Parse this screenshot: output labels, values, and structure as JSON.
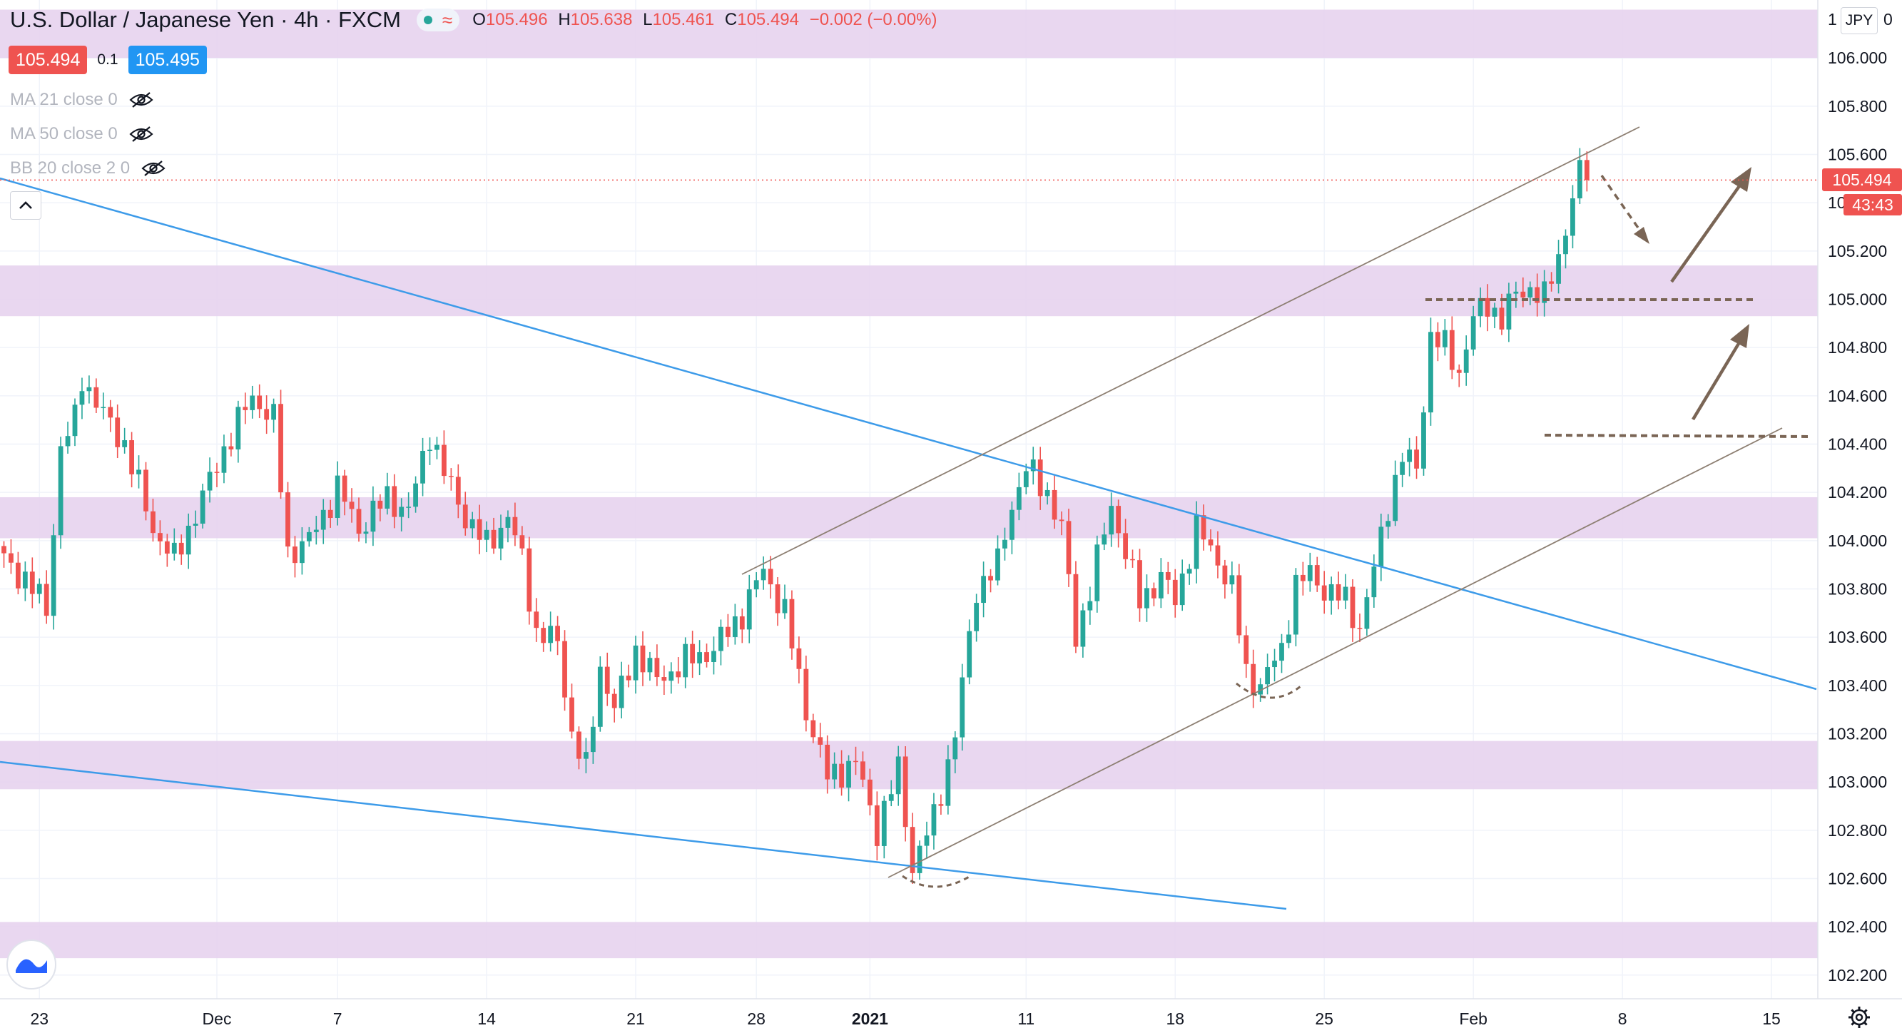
{
  "header": {
    "title": "U.S. Dollar / Japanese Yen · 4h · FXCM",
    "ohlc": {
      "open_label": "O",
      "open": "105.496",
      "high_label": "H",
      "high": "105.638",
      "low_label": "L",
      "low": "105.461",
      "close_label": "C",
      "close": "105.494",
      "change": "−0.002 (−0.00%)"
    },
    "status_wave": "≈",
    "sell_price": "105.494",
    "spread": "0.1",
    "buy_price": "105.495"
  },
  "indicators": [
    {
      "label": "MA 21 close 0",
      "icon": "eye-off-icon"
    },
    {
      "label": "MA 50 close 0",
      "icon": "eye-off-icon"
    },
    {
      "label": "BB 20 close 2 0",
      "icon": "eye-off-icon"
    }
  ],
  "currency_button": "JPY",
  "currency_extra": "0",
  "axis_top_partial": "1",
  "last_price_tag": "105.494",
  "countdown_tag": "43:43",
  "colors": {
    "up": "#26a69a",
    "down": "#ef5350",
    "zone": "#e7d3ee",
    "trend_blue": "#3d9be9",
    "channel": "#8d7f72",
    "annotation": "#7a6555"
  },
  "chart_data": {
    "type": "candlestick",
    "symbol": "USD/JPY",
    "interval": "4h",
    "ylim": [
      101.96,
      106.24
    ],
    "y_ticks": [
      "106.000",
      "105.800",
      "105.600",
      "105.400",
      "105.200",
      "105.000",
      "104.800",
      "104.600",
      "104.400",
      "104.200",
      "104.000",
      "103.800",
      "103.600",
      "103.400",
      "103.200",
      "103.000",
      "102.800",
      "102.600",
      "102.400",
      "102.200"
    ],
    "x_labels": [
      {
        "text": "23",
        "bar": 5
      },
      {
        "text": "Dec",
        "bar": 30
      },
      {
        "text": "7",
        "bar": 47
      },
      {
        "text": "14",
        "bar": 68
      },
      {
        "text": "21",
        "bar": 89
      },
      {
        "text": "28",
        "bar": 106
      },
      {
        "text": "2021",
        "bar": 122,
        "bold": true
      },
      {
        "text": "11",
        "bar": 144
      },
      {
        "text": "18",
        "bar": 165
      },
      {
        "text": "25",
        "bar": 186
      },
      {
        "text": "Feb",
        "bar": 207
      },
      {
        "text": "8",
        "bar": 228
      },
      {
        "text": "15",
        "bar": 249
      }
    ],
    "anchors": [
      [
        0,
        103.92
      ],
      [
        3,
        103.84
      ],
      [
        6,
        103.72
      ],
      [
        8,
        104.38
      ],
      [
        10,
        104.5
      ],
      [
        11,
        104.68
      ],
      [
        14,
        104.52
      ],
      [
        17,
        104.4
      ],
      [
        21,
        104.05
      ],
      [
        24,
        103.92
      ],
      [
        28,
        104.18
      ],
      [
        31,
        104.38
      ],
      [
        35,
        104.6
      ],
      [
        38,
        104.5
      ],
      [
        40,
        103.95
      ],
      [
        43,
        104.0
      ],
      [
        47,
        104.22
      ],
      [
        50,
        104.05
      ],
      [
        54,
        104.18
      ],
      [
        57,
        104.12
      ],
      [
        60,
        104.45
      ],
      [
        62,
        104.28
      ],
      [
        65,
        104.1
      ],
      [
        68,
        103.98
      ],
      [
        71,
        104.1
      ],
      [
        73,
        103.92
      ],
      [
        75,
        103.62
      ],
      [
        78,
        103.58
      ],
      [
        80,
        103.2
      ],
      [
        82,
        103.05
      ],
      [
        84,
        103.48
      ],
      [
        86,
        103.3
      ],
      [
        89,
        103.55
      ],
      [
        92,
        103.42
      ],
      [
        96,
        103.5
      ],
      [
        100,
        103.55
      ],
      [
        104,
        103.7
      ],
      [
        107,
        103.88
      ],
      [
        110,
        103.7
      ],
      [
        113,
        103.3
      ],
      [
        116,
        103.02
      ],
      [
        120,
        103.08
      ],
      [
        123,
        102.8
      ],
      [
        126,
        103.05
      ],
      [
        128,
        102.65
      ],
      [
        131,
        102.85
      ],
      [
        134,
        103.2
      ],
      [
        137,
        103.8
      ],
      [
        140,
        103.9
      ],
      [
        142,
        104.15
      ],
      [
        144,
        104.3
      ],
      [
        147,
        104.2
      ],
      [
        149,
        104.05
      ],
      [
        151,
        103.6
      ],
      [
        153,
        103.8
      ],
      [
        156,
        104.15
      ],
      [
        158,
        103.95
      ],
      [
        160,
        103.75
      ],
      [
        163,
        103.85
      ],
      [
        165,
        103.75
      ],
      [
        168,
        104.05
      ],
      [
        171,
        103.92
      ],
      [
        173,
        103.8
      ],
      [
        175,
        103.45
      ],
      [
        177,
        103.4
      ],
      [
        180,
        103.55
      ],
      [
        182,
        103.82
      ],
      [
        184,
        103.86
      ],
      [
        186,
        103.8
      ],
      [
        189,
        103.75
      ],
      [
        191,
        103.64
      ],
      [
        193,
        103.88
      ],
      [
        195,
        104.15
      ],
      [
        197,
        104.35
      ],
      [
        199,
        104.3
      ],
      [
        201,
        104.85
      ],
      [
        203,
        104.8
      ],
      [
        205,
        104.7
      ],
      [
        207,
        104.92
      ],
      [
        209,
        104.98
      ],
      [
        211,
        104.92
      ],
      [
        213,
        105.02
      ],
      [
        215,
        105.05
      ],
      [
        217,
        105.0
      ],
      [
        219,
        105.18
      ],
      [
        221,
        105.42
      ],
      [
        222,
        105.52
      ],
      [
        223,
        105.49
      ]
    ],
    "last_price": 105.494,
    "zones": [
      {
        "from": 106.0,
        "to": 106.2
      },
      {
        "from": 104.93,
        "to": 105.14
      },
      {
        "from": 104.01,
        "to": 104.18
      },
      {
        "from": 102.97,
        "to": 103.17
      },
      {
        "from": 102.27,
        "to": 102.42
      }
    ]
  }
}
